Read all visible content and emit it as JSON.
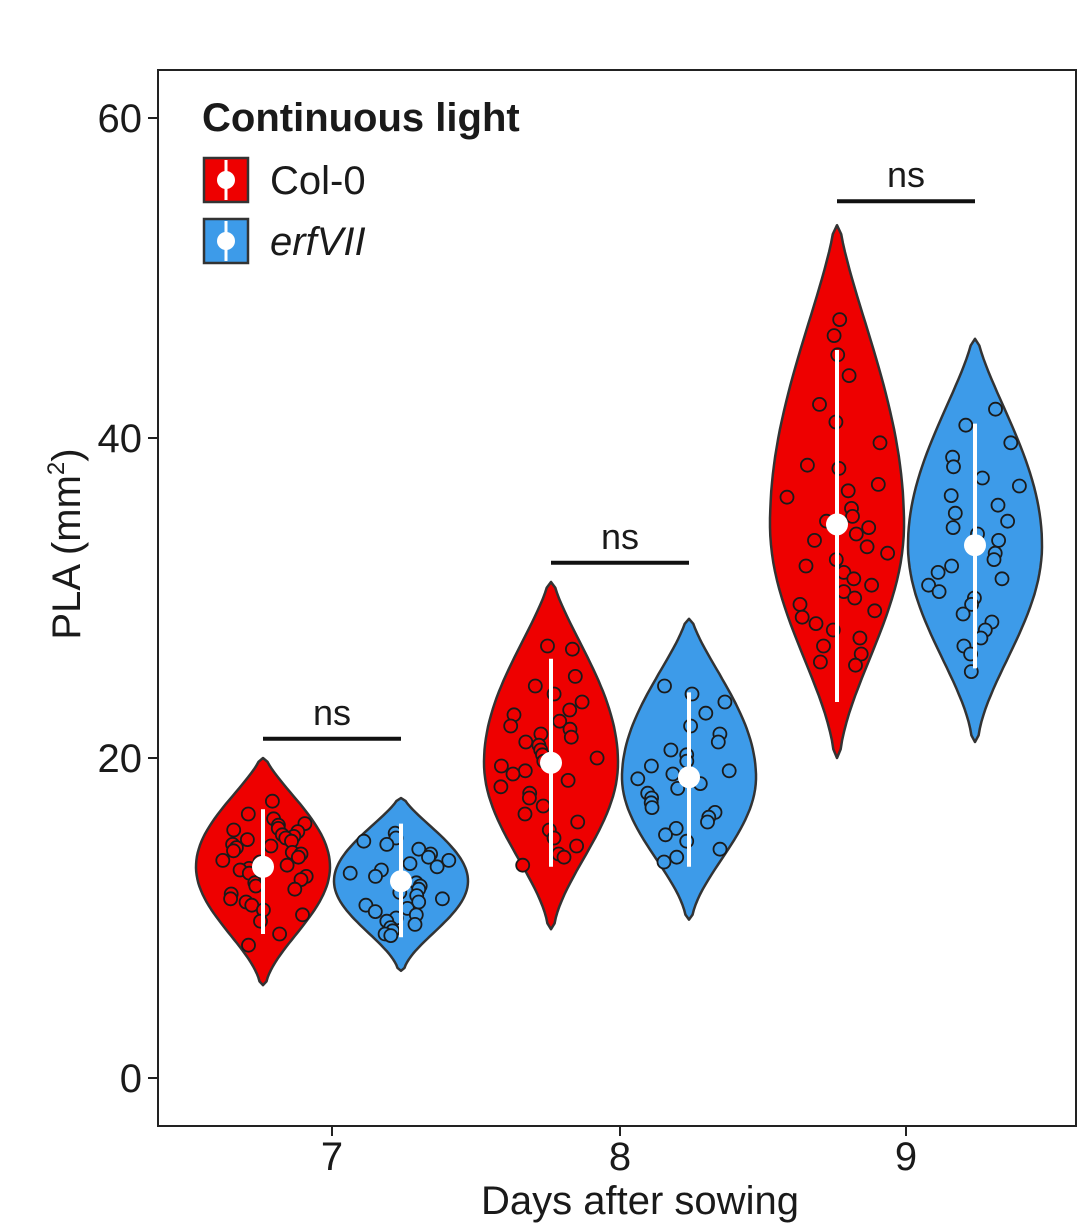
{
  "chart_data": {
    "type": "violin",
    "legend_title": "Continuous light",
    "xlabel": "Days after sowing",
    "ylabel_main": "PLA (mm",
    "ylabel_sup": "2",
    "ylabel_close": ")",
    "ylim": [
      -3,
      63
    ],
    "yticks": [
      0,
      20,
      40,
      60
    ],
    "categories": [
      "7",
      "8",
      "9"
    ],
    "legend_placement": "top-left",
    "grid": false,
    "series": [
      {
        "name": "Col-0",
        "italic": false,
        "color": "#ee0000",
        "groups": [
          {
            "median": 13.2,
            "lower": 9.0,
            "upper": 16.8,
            "min": 5.8,
            "max": 20.0,
            "points": [
              17.3,
              16.5,
              16.2,
              15.9,
              15.8,
              15.6,
              15.5,
              15.4,
              15.2,
              15.1,
              15.0,
              14.9,
              14.8,
              14.6,
              14.5,
              14.4,
              14.2,
              14.1,
              14.0,
              13.8,
              13.6,
              13.5,
              13.3,
              13.1,
              13.0,
              12.8,
              12.6,
              12.4,
              12.2,
              12.0,
              11.8,
              11.5,
              11.2,
              11.0,
              10.8,
              10.5,
              10.2,
              9.8,
              9.0,
              8.3
            ]
          },
          {
            "median": 19.7,
            "lower": 13.2,
            "upper": 26.2,
            "min": 9.3,
            "max": 31.0,
            "points": [
              27.0,
              26.8,
              25.1,
              24.5,
              24.0,
              23.5,
              23.0,
              22.7,
              22.3,
              22.0,
              21.8,
              21.5,
              21.3,
              21.0,
              20.8,
              20.5,
              20.2,
              20.0,
              19.8,
              19.5,
              19.2,
              19.0,
              18.6,
              18.2,
              17.8,
              17.5,
              17.0,
              16.5,
              16.0,
              15.5,
              15.0,
              14.5,
              14.0,
              13.8,
              13.3
            ]
          },
          {
            "median": 34.6,
            "lower": 23.5,
            "upper": 45.5,
            "min": 20.0,
            "max": 53.3,
            "points": [
              47.4,
              46.4,
              45.2,
              43.9,
              42.1,
              41.0,
              39.7,
              38.3,
              38.1,
              37.1,
              36.7,
              36.3,
              35.6,
              35.1,
              34.8,
              34.4,
              34.0,
              33.6,
              33.2,
              32.8,
              32.4,
              32.0,
              31.6,
              31.2,
              30.8,
              30.4,
              30.0,
              29.6,
              29.2,
              28.8,
              28.4,
              28.0,
              27.5,
              27.0,
              26.5,
              26.0,
              25.8
            ]
          }
        ]
      },
      {
        "name": "erfVII",
        "italic": true,
        "color": "#3d9be9",
        "groups": [
          {
            "median": 12.3,
            "lower": 8.8,
            "upper": 15.9,
            "min": 6.7,
            "max": 17.5,
            "points": [
              15.3,
              15.0,
              14.8,
              14.6,
              14.3,
              14.0,
              13.8,
              13.6,
              13.4,
              13.2,
              13.0,
              12.8,
              12.6,
              12.4,
              12.2,
              12.0,
              11.8,
              11.6,
              11.4,
              11.2,
              11.0,
              10.8,
              10.6,
              10.4,
              10.2,
              10.0,
              9.8,
              9.6,
              9.4,
              9.2,
              9.0,
              8.9
            ]
          },
          {
            "median": 18.8,
            "lower": 13.2,
            "upper": 24.1,
            "min": 9.9,
            "max": 28.7,
            "points": [
              24.5,
              24.0,
              23.5,
              22.8,
              22.0,
              21.5,
              21.0,
              20.5,
              20.2,
              19.8,
              19.5,
              19.2,
              19.0,
              18.7,
              18.4,
              18.1,
              17.8,
              17.5,
              17.2,
              16.9,
              16.6,
              16.3,
              16.0,
              15.6,
              15.2,
              14.8,
              14.3,
              13.8,
              13.5
            ]
          },
          {
            "median": 33.3,
            "lower": 25.6,
            "upper": 40.9,
            "min": 21.0,
            "max": 46.2,
            "points": [
              41.8,
              40.8,
              39.7,
              38.8,
              38.2,
              37.5,
              37.0,
              36.4,
              35.8,
              35.3,
              34.8,
              34.4,
              34.0,
              33.6,
              33.2,
              32.8,
              32.4,
              32.0,
              31.6,
              31.2,
              30.8,
              30.4,
              30.0,
              29.6,
              29.0,
              28.5,
              28.0,
              27.5,
              27.0,
              26.5,
              25.4
            ]
          }
        ]
      }
    ],
    "annotations": [
      {
        "label": "ns",
        "category": 0,
        "y": 21.2
      },
      {
        "label": "ns",
        "category": 1,
        "y": 32.2
      },
      {
        "label": "ns",
        "category": 2,
        "y": 54.8
      }
    ]
  }
}
